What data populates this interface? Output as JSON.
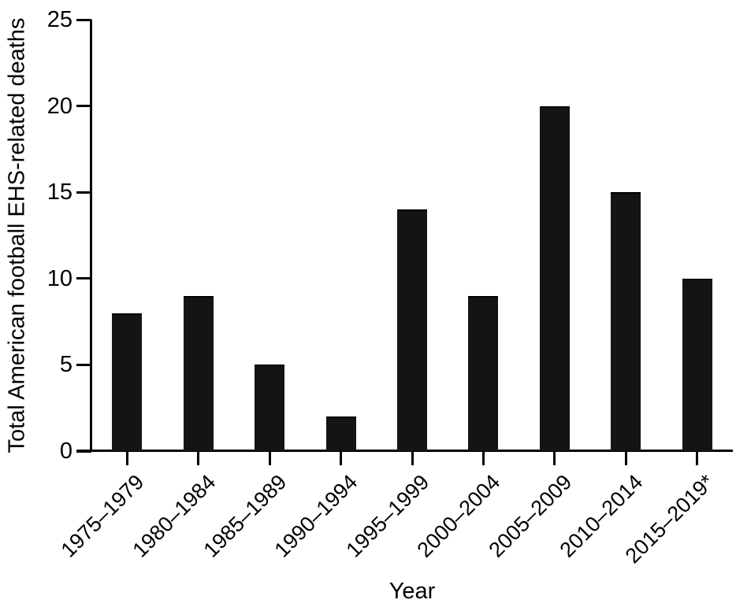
{
  "figure": {
    "background": "#ffffff",
    "text_color": "#000000"
  },
  "chart_data": {
    "type": "bar",
    "title": "",
    "categories": [
      "1975–1979",
      "1980–1984",
      "1985–1989",
      "1990–1994",
      "1995–1999",
      "2000–2004",
      "2005–2009",
      "2010–2014",
      "2015–2019*"
    ],
    "values": [
      8,
      9,
      5,
      2,
      14,
      9,
      20,
      15,
      10
    ],
    "xlabel": "Year",
    "ylabel": "Total American football EHS-related deaths",
    "ylim": [
      0,
      25
    ],
    "yticks": [
      0,
      5,
      10,
      15,
      20,
      25
    ],
    "bar_color": "#141414",
    "axis_color": "#000000",
    "grid": false,
    "legend": false,
    "x_tick_rotation_deg": 45
  }
}
